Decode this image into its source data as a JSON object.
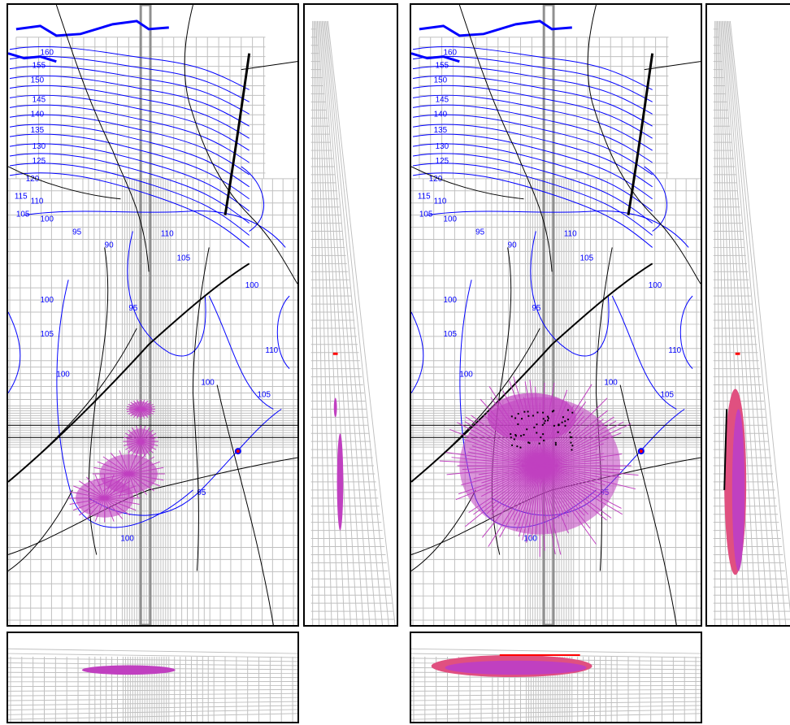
{
  "colors": {
    "grid": "#c0c0c0",
    "contour": "#0000ff",
    "road": "#000000",
    "plume": "#c040c0",
    "plume_edge": "#e05080",
    "source": "#ff0000"
  },
  "map_labels": {
    "north_road": "",
    "east_road": "",
    "west_area": "",
    "junction": "",
    "southwest_area": ""
  },
  "contour_labels": [
    "160",
    "155",
    "150",
    "145",
    "140",
    "135",
    "130",
    "125",
    "120",
    "115",
    "110",
    "105",
    "100",
    "95",
    "90"
  ],
  "panels": [
    {
      "id": "left",
      "scenario": "small plume",
      "plume_extent": 0.35
    },
    {
      "id": "right",
      "scenario": "large plume",
      "plume_extent": 1.0
    }
  ]
}
